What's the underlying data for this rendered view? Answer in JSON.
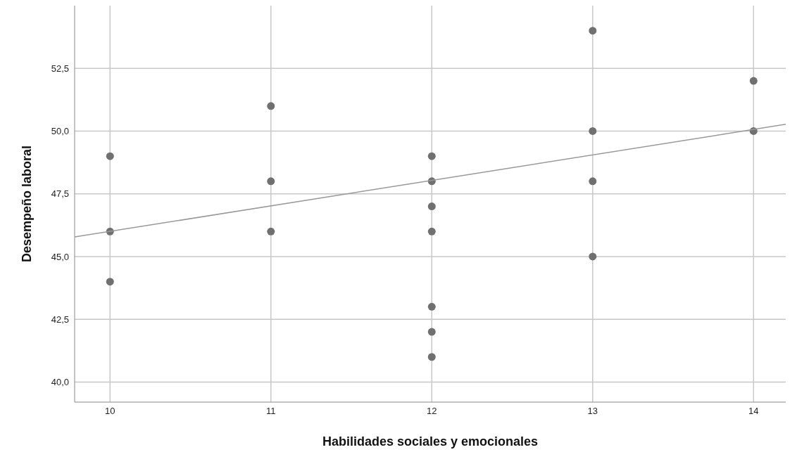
{
  "chart_data": {
    "type": "scatter",
    "xlabel": "Habilidades sociales y emocionales",
    "ylabel": "Desempeño laboral",
    "xlim": [
      9.78,
      14.2
    ],
    "xticks": [
      10,
      11,
      12,
      13,
      14
    ],
    "ylim": [
      39.2,
      55.0
    ],
    "yticks": [
      {
        "value": 40,
        "label": "40,0"
      },
      {
        "value": 42.5,
        "label": "42,5"
      },
      {
        "value": 45,
        "label": "45,0"
      },
      {
        "value": 47.5,
        "label": "47,5"
      },
      {
        "value": 50,
        "label": "50,0"
      },
      {
        "value": 52.5,
        "label": "52,5"
      }
    ],
    "grid": true,
    "marker": "circle",
    "series": [
      {
        "color": "#707070",
        "x": [
          10,
          10,
          10,
          11,
          11,
          11,
          12,
          12,
          12,
          12,
          12,
          12,
          12,
          13,
          13,
          13,
          13,
          14,
          14
        ],
        "values": [
          49,
          46,
          44,
          51,
          48,
          46,
          49,
          48,
          47,
          46,
          43,
          42,
          41,
          54,
          50,
          48,
          45,
          52,
          50
        ]
      },
      {
        "type": "line",
        "color": "#999999",
        "marker": "none",
        "x": [
          9.78,
          14.2
        ],
        "values": [
          45.78,
          50.27
        ]
      }
    ]
  }
}
